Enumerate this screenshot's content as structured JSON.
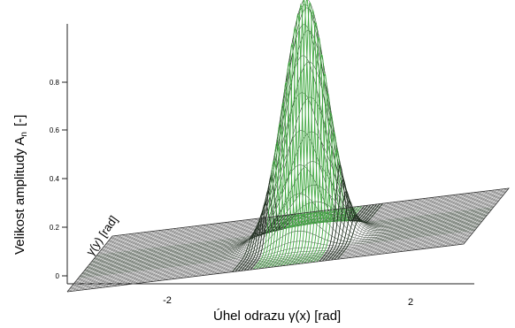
{
  "chart_data": {
    "type": "surface",
    "title": "",
    "zlabel": "Velikost amplitudy A",
    "zlabel_sub": "n",
    "zlabel_unit": "[-]",
    "xlabel": "Úhel odrazu γ(x)  [rad]",
    "ylabel": "γ(y)  [rad]",
    "z_ticks": [
      "0",
      "0.2",
      "0.4",
      "0.6",
      "0.8"
    ],
    "z_tick_values": [
      0,
      0.2,
      0.4,
      0.6,
      0.8
    ],
    "x_ticks": [
      "-2",
      "2"
    ],
    "x_tick_values": [
      -2,
      2
    ],
    "zlim": [
      0,
      1
    ],
    "peak": {
      "x": 0,
      "y": 0,
      "z": 1.0
    },
    "grid": true,
    "colors": {
      "base_mesh": "#555555",
      "peak_dark": "#1e2e1e",
      "peak_green": "#3fa83f",
      "axis": "#222222"
    }
  }
}
